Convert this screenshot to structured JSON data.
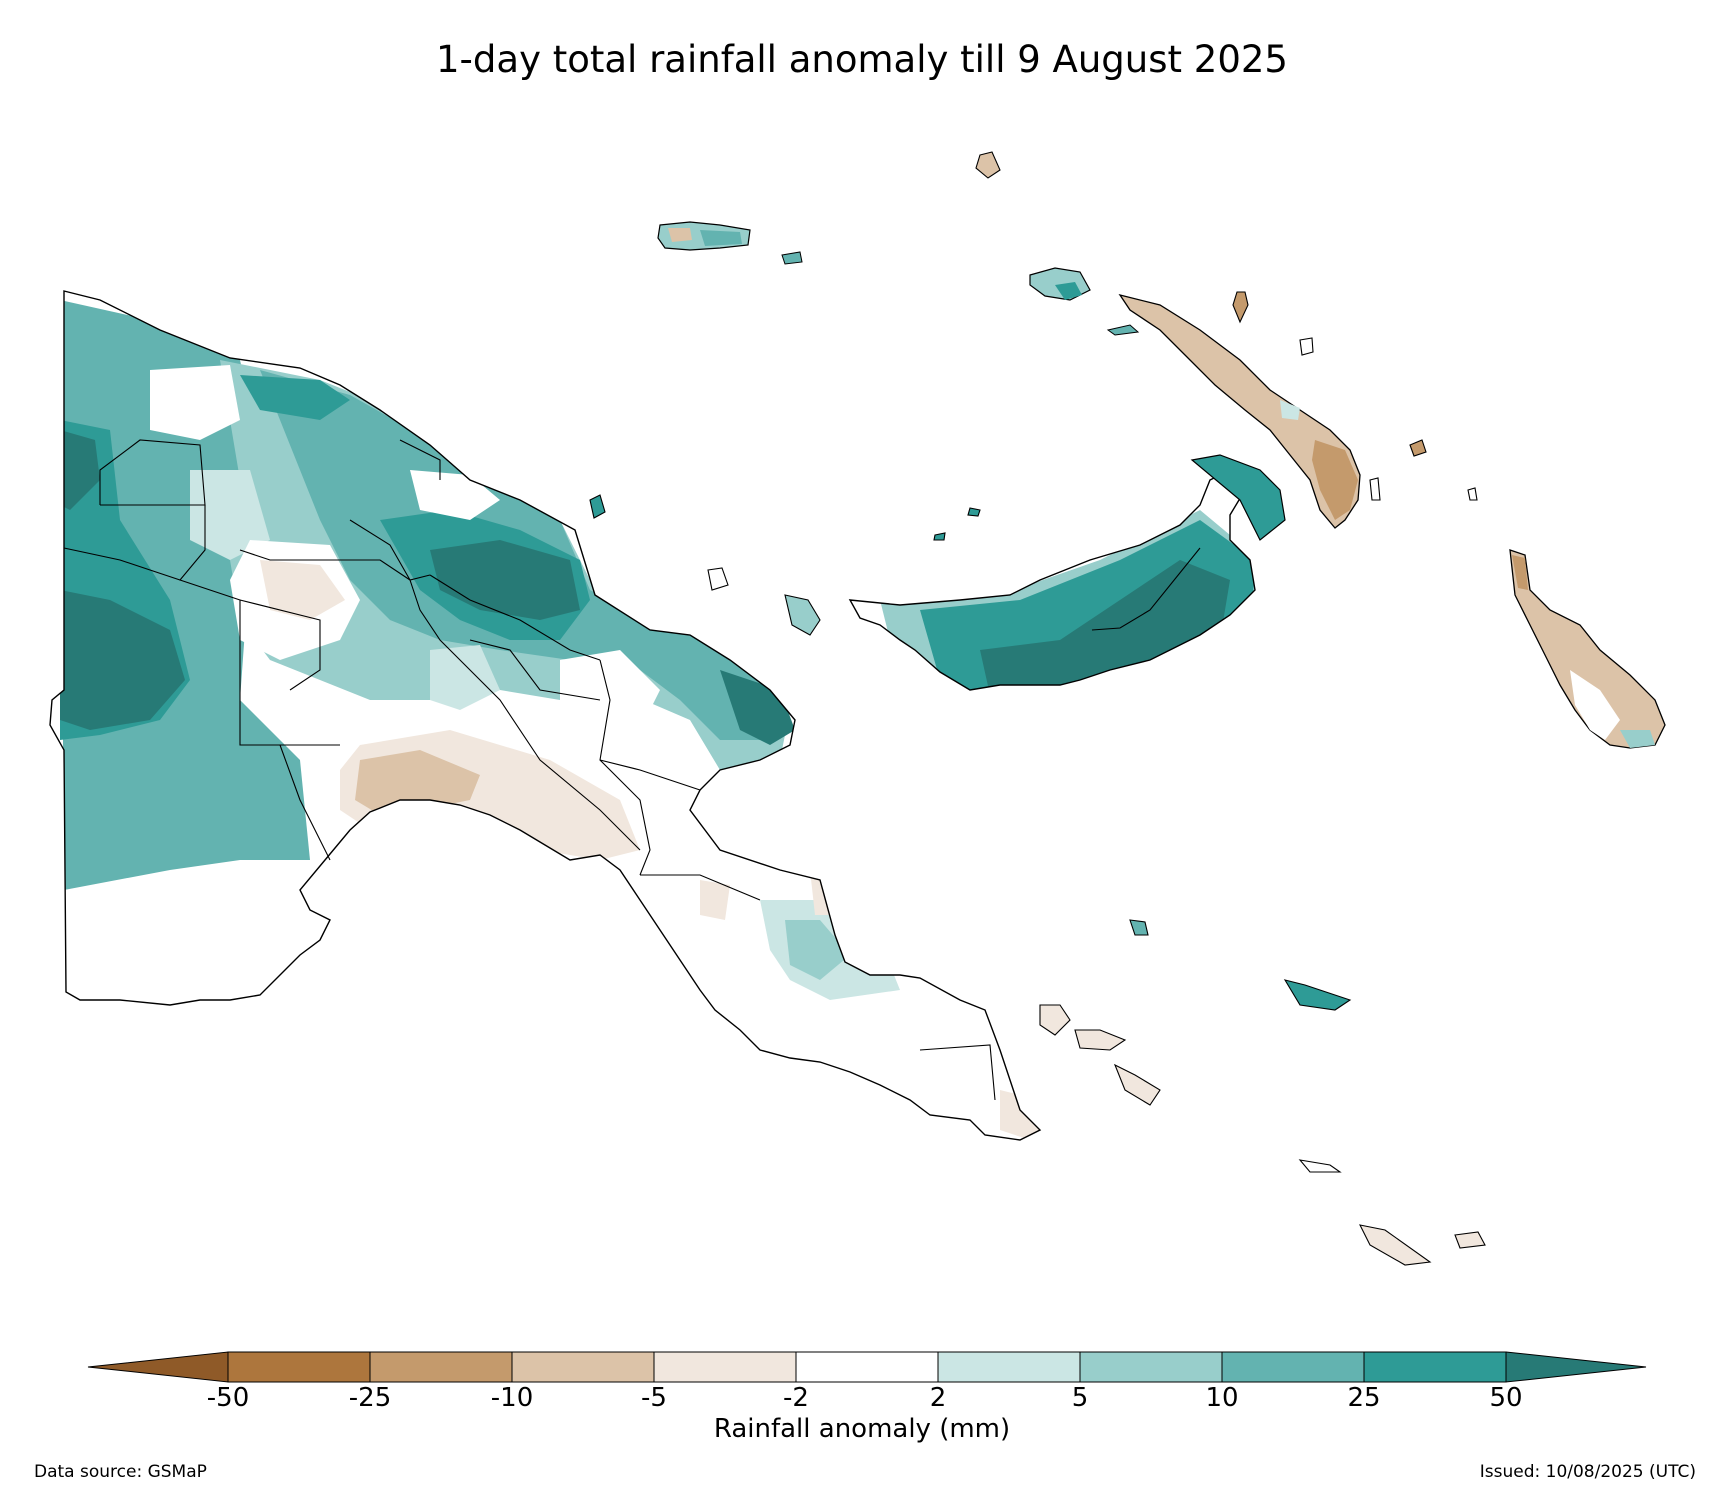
{
  "title": "1-day total rainfall anomaly till 9 August 2025",
  "colorbar": {
    "label": "Rainfall anomaly (mm)",
    "ticks": [
      "-50",
      "-25",
      "-10",
      "-5",
      "-2",
      "2",
      "5",
      "10",
      "25",
      "50"
    ],
    "bins": [
      {
        "range": "< -50",
        "color": "#8f5a28"
      },
      {
        "range": "-50 to -25",
        "color": "#ad763d"
      },
      {
        "range": "-25 to -10",
        "color": "#c49a6c"
      },
      {
        "range": "-10 to -5",
        "color": "#dcc3a8"
      },
      {
        "range": "-5 to -2",
        "color": "#f1e7de"
      },
      {
        "range": "-2 to 2",
        "color": "#ffffff"
      },
      {
        "range": "2 to 5",
        "color": "#cbe6e4"
      },
      {
        "range": "5 to 10",
        "color": "#98cecb"
      },
      {
        "range": "10 to 25",
        "color": "#63b3b0"
      },
      {
        "range": "25 to 50",
        "color": "#2e9b96"
      },
      {
        "range": "> 50",
        "color": "#277a76"
      }
    ]
  },
  "map": {
    "region": "Papua New Guinea",
    "colors": {
      "coast": "#000000",
      "border": "#000000",
      "wet_light": "#cbe6e4",
      "wet_mid": "#98cecb",
      "wet_high": "#63b3b0",
      "wet_very_high": "#2e9b96",
      "wet_extreme": "#277a76",
      "dry_light": "#f1e7de",
      "dry_mid": "#dcc3a8",
      "dry_high": "#c49a6c"
    }
  },
  "footer": {
    "source": "Data source: GSMaP",
    "issued": "Issued: 10/08/2025 (UTC)"
  }
}
